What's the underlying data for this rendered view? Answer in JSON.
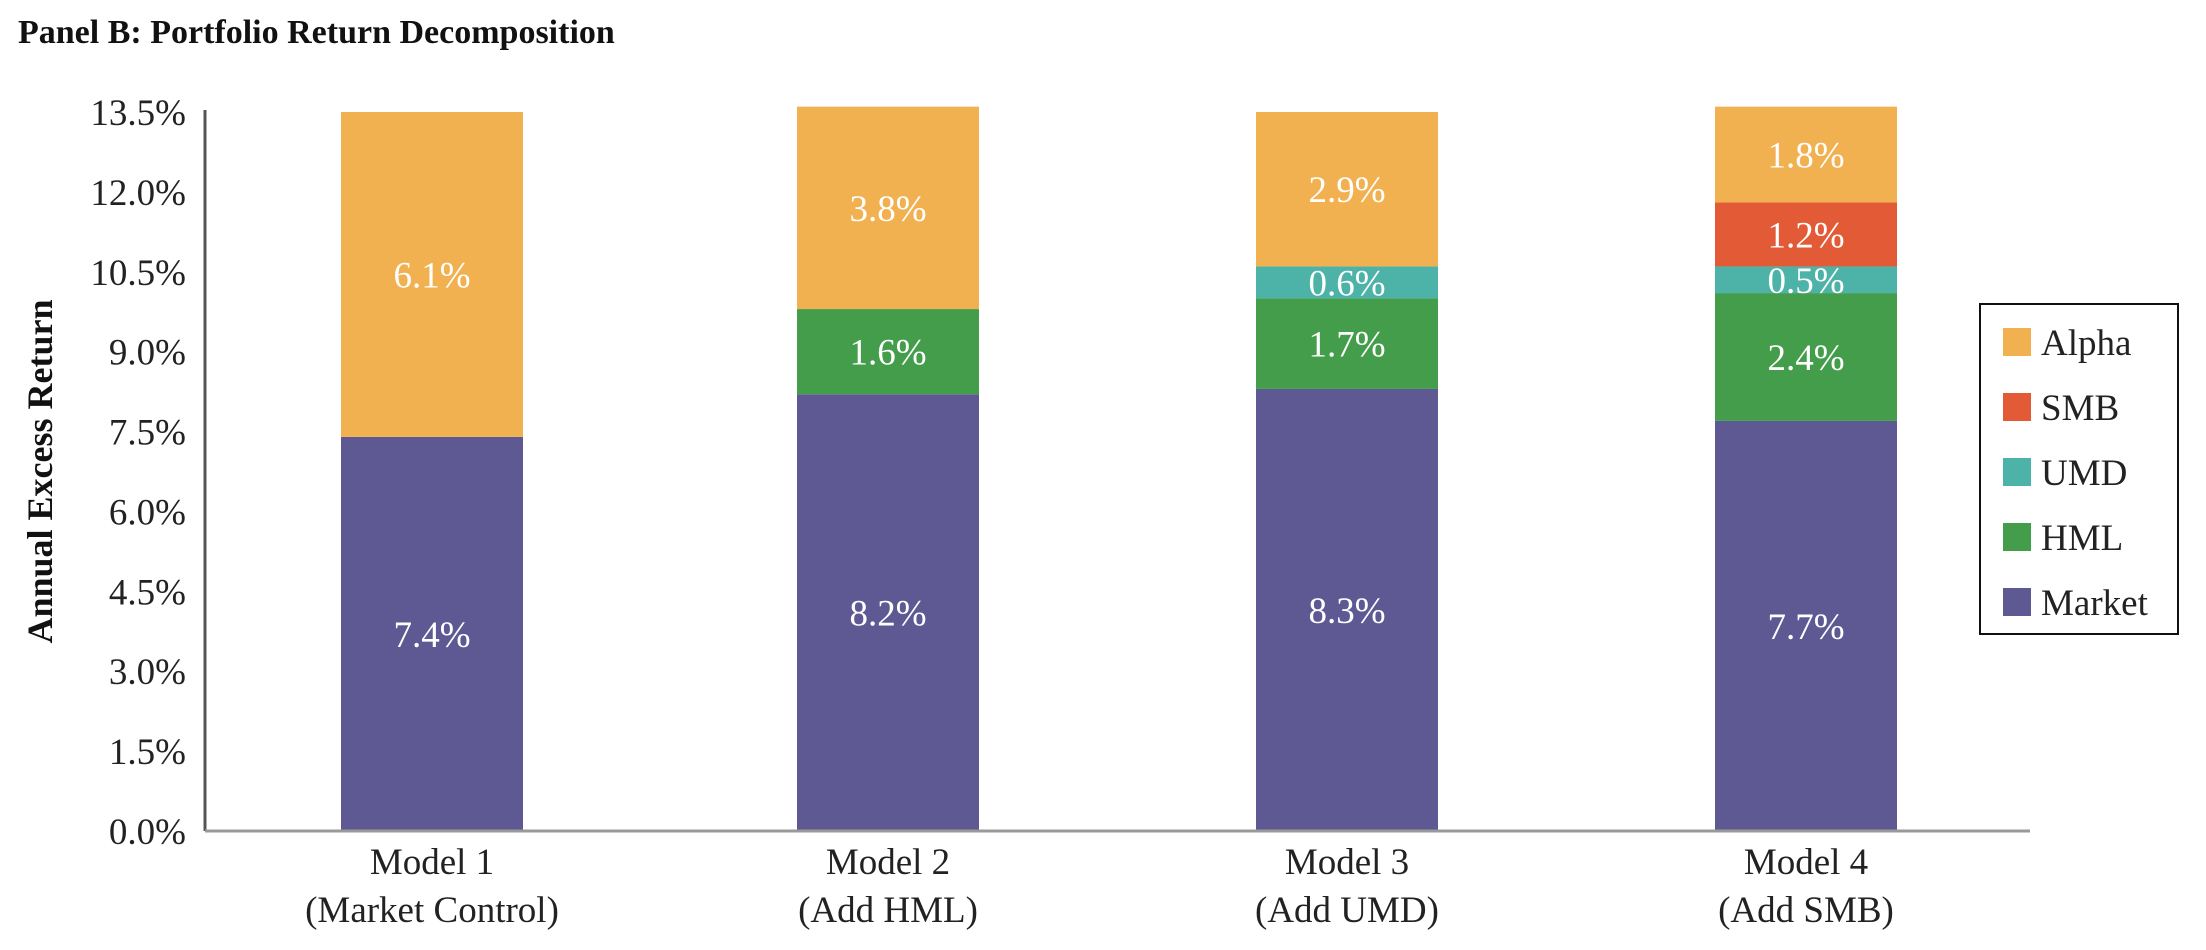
{
  "panel_title": "Panel B: Portfolio Return Decomposition",
  "chart_data": {
    "type": "bar",
    "stacked": true,
    "ylabel": "Annual Excess Return",
    "ylim": [
      0,
      13.5
    ],
    "yticks": [
      "0.0%",
      "1.5%",
      "3.0%",
      "4.5%",
      "6.0%",
      "7.5%",
      "9.0%",
      "10.5%",
      "12.0%",
      "13.5%"
    ],
    "categories": [
      [
        "Model 1",
        "(Market Control)"
      ],
      [
        "Model 2",
        "(Add HML)"
      ],
      [
        "Model 3",
        "(Add UMD)"
      ],
      [
        "Model 4",
        "(Add SMB)"
      ]
    ],
    "series": [
      {
        "name": "Market",
        "color": "#5e5893",
        "values": [
          7.4,
          8.2,
          8.3,
          7.7
        ],
        "labels": [
          "7.4%",
          "8.2%",
          "8.3%",
          "7.7%"
        ]
      },
      {
        "name": "HML",
        "color": "#449d4b",
        "values": [
          0,
          1.6,
          1.7,
          2.4
        ],
        "labels": [
          "",
          "1.6%",
          "1.7%",
          "2.4%"
        ]
      },
      {
        "name": "UMD",
        "color": "#4db3a8",
        "values": [
          0,
          0,
          0.6,
          0.5
        ],
        "labels": [
          "",
          "",
          "0.6%",
          "0.5%"
        ]
      },
      {
        "name": "SMB",
        "color": "#e25a36",
        "values": [
          0,
          0,
          0,
          1.2
        ],
        "labels": [
          "",
          "",
          "",
          "1.2%"
        ]
      },
      {
        "name": "Alpha",
        "color": "#f2b150",
        "values": [
          6.1,
          3.8,
          2.9,
          1.8
        ],
        "labels": [
          "6.1%",
          "3.8%",
          "2.9%",
          "1.8%"
        ]
      }
    ],
    "legend": {
      "position": "right",
      "order": [
        "Alpha",
        "SMB",
        "UMD",
        "HML",
        "Market"
      ]
    },
    "grid": false
  }
}
